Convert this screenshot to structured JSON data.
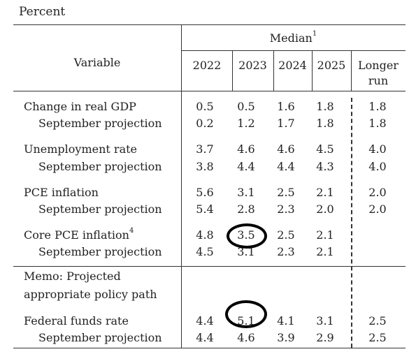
{
  "unit_label": "Percent",
  "header": {
    "median_label": "Median",
    "median_sup": "1",
    "variable_label": "Variable",
    "years": [
      "2022",
      "2023",
      "2024",
      "2025"
    ],
    "longer_run": [
      "Longer",
      "run"
    ]
  },
  "rows": [
    {
      "label": "Change in real GDP",
      "sup": "",
      "values": [
        "0.5",
        "0.5",
        "1.6",
        "1.8",
        "1.8"
      ]
    },
    {
      "label": "September projection",
      "sup": "",
      "values": [
        "0.2",
        "1.2",
        "1.7",
        "1.8",
        "1.8"
      ]
    },
    {
      "label": "Unemployment rate",
      "sup": "",
      "values": [
        "3.7",
        "4.6",
        "4.6",
        "4.5",
        "4.0"
      ]
    },
    {
      "label": "September projection",
      "sup": "",
      "values": [
        "3.8",
        "4.4",
        "4.4",
        "4.3",
        "4.0"
      ]
    },
    {
      "label": "PCE inflation",
      "sup": "",
      "values": [
        "5.6",
        "3.1",
        "2.5",
        "2.1",
        "2.0"
      ]
    },
    {
      "label": "September projection",
      "sup": "",
      "values": [
        "5.4",
        "2.8",
        "2.3",
        "2.0",
        "2.0"
      ]
    },
    {
      "label": "Core PCE inflation",
      "sup": "4",
      "values": [
        "4.8",
        "3.5",
        "2.5",
        "2.1",
        ""
      ]
    },
    {
      "label": "September projection",
      "sup": "",
      "values": [
        "4.5",
        "3.1",
        "2.3",
        "2.1",
        ""
      ]
    }
  ],
  "memo": {
    "line1": "Memo: Projected",
    "line2": "appropriate policy path"
  },
  "memo_rows": [
    {
      "label": "Federal funds rate",
      "values": [
        "4.4",
        "5.1",
        "4.1",
        "3.1",
        "2.5"
      ]
    },
    {
      "label": "September projection",
      "values": [
        "4.4",
        "4.6",
        "3.9",
        "2.9",
        "2.5"
      ]
    }
  ]
}
